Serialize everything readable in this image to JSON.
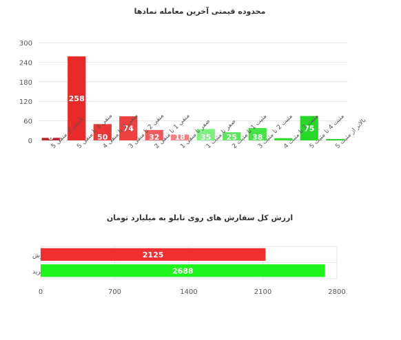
{
  "chart_data": [
    {
      "type": "bar",
      "title": "محدوده قیمتی آخرین معامله نمادها",
      "categories": [
        "پایینتر از منفی 5",
        "منفی 4 تا منفی 5",
        "منفی 3 تا منفی 4",
        "منفی 2 تا منفی 3",
        "منفی 1 تا منفی 2",
        "صفر تا منفی 1",
        "صفر تا مثبت 1",
        "مثبت 1 تا مثبت 2",
        "مثبت 2 تا مثبت 3",
        "مثبت 3 تا مثبت 4",
        "مثبت 4 تا مثبت 5",
        "بالاتر از مثبت 5"
      ],
      "values": [
        8,
        258,
        50,
        74,
        32,
        18,
        35,
        25,
        38,
        7,
        75,
        4
      ],
      "value_labels": [
        "8",
        "258",
        "50",
        "74",
        "32",
        "18",
        "35",
        "25",
        "38",
        "",
        "75",
        ""
      ],
      "colors": [
        "#b52a2a",
        "#e82a2a",
        "#ec3535",
        "#ef4040",
        "#f05a5a",
        "#f48080",
        "#7ef07e",
        "#5ae85a",
        "#46e246",
        "#35dd35",
        "#28d828",
        "#1ecf1e"
      ],
      "ylim": [
        0,
        300
      ],
      "yticks": [
        "0",
        "60",
        "120",
        "180",
        "240",
        "300"
      ],
      "grid": true
    },
    {
      "type": "bar",
      "orientation": "horizontal",
      "title": "ارزش کل سفارش های روی تابلو به میلیارد تومان",
      "categories": [
        "فروش",
        "خرید"
      ],
      "values": [
        2125,
        2688
      ],
      "value_labels": [
        "2125",
        "2688"
      ],
      "colors": [
        "#f03030",
        "#1ef51e"
      ],
      "xlim": [
        0,
        2800
      ],
      "xticks": [
        "0",
        "700",
        "1400",
        "2100",
        "2800"
      ],
      "grid": true
    }
  ]
}
